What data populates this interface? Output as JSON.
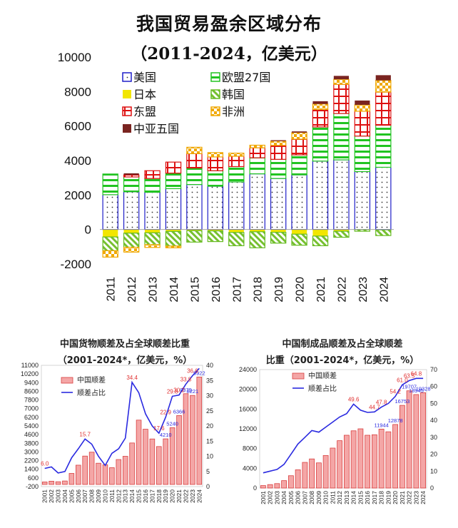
{
  "chart_data": [
    {
      "type": "bar",
      "stacked": true,
      "title": "我国贸易盈余区域分布",
      "subtitle": "（2011-2024，亿美元）",
      "categories": [
        "2011",
        "2012",
        "2013",
        "2014",
        "2015",
        "2016",
        "2017",
        "2018",
        "2019",
        "2020",
        "2021",
        "2022",
        "2023",
        "2024"
      ],
      "ylim": [
        -2000,
        10000
      ],
      "yticks": [
        "10000",
        "8000",
        "6000",
        "4000",
        "2000",
        "0",
        "-2000"
      ],
      "legend_position": "top-left",
      "series": [
        {
          "name": "美国",
          "color": "#1f1fc8",
          "pattern": "dots",
          "values": [
            2020,
            2190,
            2160,
            2370,
            2610,
            2510,
            2760,
            3230,
            2960,
            3170,
            3970,
            4040,
            3360,
            3610
          ]
        },
        {
          "name": "欧盟27国",
          "color": "#22c422",
          "pattern": "hstripes",
          "values": [
            1200,
            860,
            800,
            900,
            960,
            900,
            890,
            930,
            1110,
            1160,
            1980,
            2690,
            2060,
            2440
          ]
        },
        {
          "name": "日本",
          "color": "#f2e600",
          "pattern": "solid",
          "values": [
            -430,
            -210,
            -190,
            -110,
            -70,
            -80,
            -170,
            -130,
            -160,
            -270,
            -380,
            -100,
            0,
            -20
          ]
        },
        {
          "name": "韩国",
          "color": "#66bb22",
          "pattern": "diagonal",
          "values": [
            -800,
            -820,
            -690,
            -850,
            -660,
            -620,
            -770,
            -930,
            -630,
            -640,
            -560,
            -350,
            -100,
            -330
          ]
        },
        {
          "name": "东盟",
          "color": "#dd1111",
          "pattern": "grid",
          "values": [
            0,
            120,
            450,
            640,
            830,
            800,
            600,
            580,
            810,
            910,
            1010,
            1690,
            1440,
            1920
          ]
        },
        {
          "name": "非洲",
          "color": "#f0a800",
          "pattern": "checker",
          "values": [
            -370,
            -280,
            -160,
            -100,
            370,
            250,
            180,
            150,
            250,
            380,
            320,
            290,
            370,
            680
          ]
        },
        {
          "name": "中亚五国",
          "color": "#7a2420",
          "pattern": "solid",
          "values": [
            0,
            90,
            0,
            0,
            0,
            0,
            0,
            0,
            50,
            70,
            160,
            200,
            250,
            300
          ]
        }
      ]
    },
    {
      "type": "bar+line",
      "title": "中国货物顺差及占全球顺差比重",
      "subtitle": "（2001-2024*，亿美元，%）",
      "categories": [
        "2001",
        "2002",
        "2003",
        "2004",
        "2005",
        "2006",
        "2007",
        "2008",
        "2009",
        "2010",
        "2011",
        "2012",
        "2013",
        "2014",
        "2015",
        "2016",
        "2017",
        "2018",
        "2019",
        "2020",
        "2021",
        "2022",
        "2023",
        "2024"
      ],
      "left_yticks": [
        "11000",
        "10200",
        "9400",
        "8600",
        "7800",
        "7000",
        "6200",
        "5400",
        "4600",
        "3800",
        "3000",
        "2200",
        "1400",
        "600",
        "-200"
      ],
      "right_yticks": [
        "40",
        "35",
        "30",
        "25",
        "20",
        "15",
        "10",
        "5",
        "0"
      ],
      "series": [
        {
          "name": "中国顺差",
          "kind": "bar",
          "color": "#f4a6a6",
          "edge": "#d94040",
          "values": [
            230,
            300,
            250,
            320,
            1020,
            1780,
            2620,
            2980,
            1960,
            1820,
            1550,
            2300,
            2600,
            3830,
            5940,
            5100,
            4200,
            3500,
            4210,
            5240,
            6366,
            8379,
            8221,
            9922
          ]
        },
        {
          "name": "顺差占比",
          "kind": "line",
          "color": "#2a2ae0",
          "values": [
            6.0,
            6.5,
            4.5,
            5.0,
            9.5,
            12.5,
            15.7,
            14.0,
            10.0,
            7.0,
            11.0,
            12.5,
            16.0,
            34.4,
            31.0,
            24.0,
            20.0,
            17.6,
            22.9,
            29.8,
            30.2,
            33.8,
            36.6,
            39.0
          ]
        }
      ],
      "labels": {
        "bar": [
          "4210",
          "5240",
          "6366",
          "8379",
          "8221",
          "9922"
        ],
        "line": [
          "6.0",
          "15.7",
          "34.4",
          "17.6",
          "22.9",
          "29.8",
          "30.2",
          "33.8",
          "36.6"
        ]
      }
    },
    {
      "type": "bar+line",
      "title": "中国制成品顺差及占全球顺差",
      "subtitle": "比重（2001-2024*，亿美元，%）",
      "categories": [
        "2001",
        "2002",
        "2003",
        "2004",
        "2005",
        "2006",
        "2007",
        "2008",
        "2009",
        "2010",
        "2011",
        "2012",
        "2013",
        "2014",
        "2015",
        "2016",
        "2017",
        "2018",
        "2019",
        "2020",
        "2021",
        "2022",
        "2023",
        "2024"
      ],
      "left_yticks": [
        "24000",
        "20000",
        "16000",
        "12000",
        "8000",
        "4000",
        "0"
      ],
      "right_yticks": [
        "70",
        "60",
        "50",
        "40",
        "30",
        "20",
        "10",
        "0"
      ],
      "series": [
        {
          "name": "中国顺差",
          "kind": "bar",
          "color": "#f4a6a6",
          "edge": "#d94040",
          "values": [
            500,
            700,
            900,
            1500,
            2500,
            3700,
            5200,
            5900,
            5100,
            6600,
            8100,
            9600,
            10700,
            11600,
            12000,
            10700,
            10800,
            11944,
            11400,
            12878,
            16753,
            19707,
            18945,
            19328
          ]
        },
        {
          "name": "顺差占比",
          "kind": "line",
          "color": "#2a2ae0",
          "values": [
            9.0,
            10.0,
            11.0,
            14.0,
            20.0,
            26.0,
            30.0,
            34.0,
            33.0,
            36.0,
            39.0,
            42.0,
            44.0,
            49.6,
            46.0,
            44.7,
            45.0,
            47.8,
            50.0,
            54.2,
            61.0,
            63.5,
            64.8,
            64.8
          ]
        }
      ],
      "labels": {
        "bar": [
          "11944",
          "12878",
          "16753",
          "19707",
          "18945",
          "19328"
        ],
        "line": [
          "49.6",
          "44.7",
          "47.8",
          "54.2",
          "61.0",
          "63.5",
          "64.8"
        ]
      }
    }
  ]
}
